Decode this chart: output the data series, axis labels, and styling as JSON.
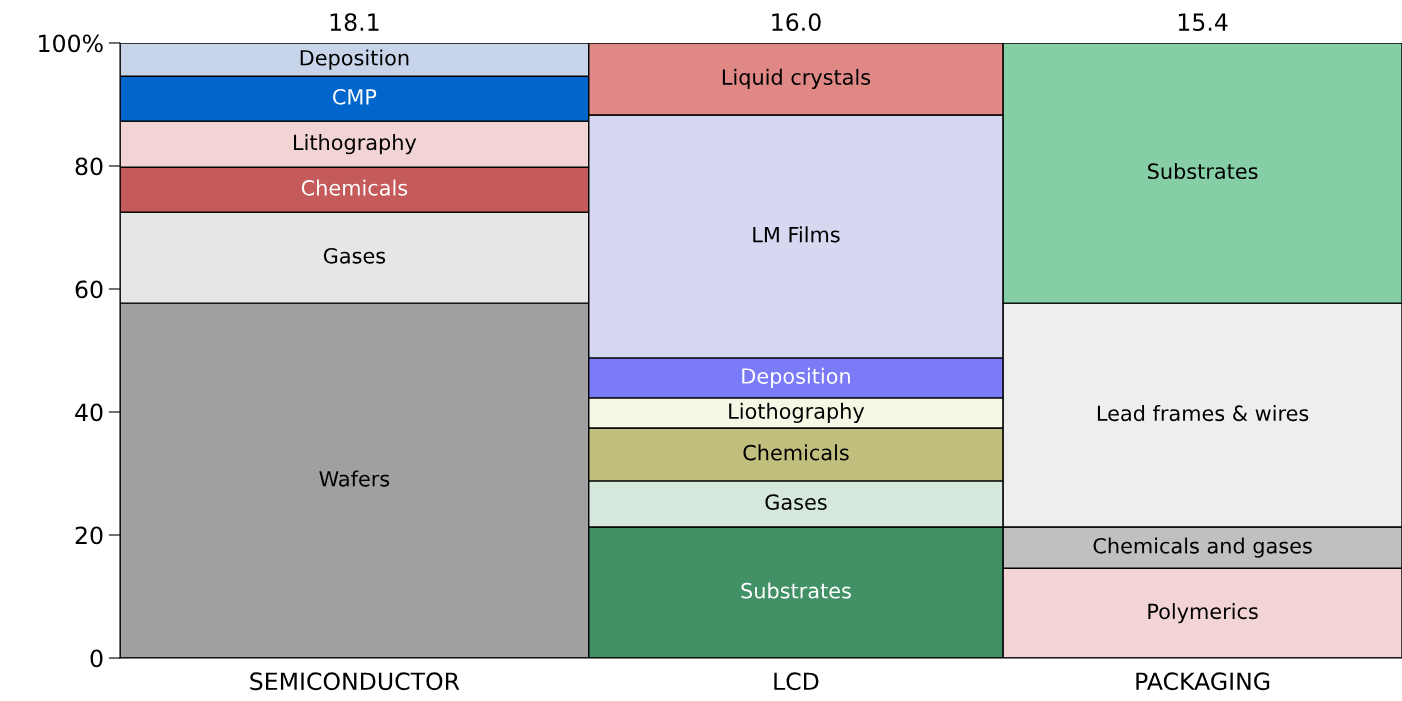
{
  "chart_data": {
    "type": "bar",
    "stacked": true,
    "categories": [
      "SEMICONDUCTOR",
      "LCD",
      "PACKAGING"
    ],
    "annotations": [
      {
        "text": "18.1",
        "x": "SEMICONDUCTOR",
        "y": 100
      },
      {
        "text": "16.0",
        "x": "LCD",
        "y": 100
      },
      {
        "text": "15.4",
        "x": "PACKAGING",
        "y": 100
      }
    ],
    "ylim": [
      0,
      100
    ],
    "yticks": [
      0,
      20,
      40,
      60,
      80,
      {
        "value": 100,
        "label": "100%"
      }
    ],
    "grid": false,
    "legend": false,
    "series": [
      {
        "name": "Wafers",
        "color": "#a0a0a0",
        "values": [
          57.7,
          null,
          null
        ]
      },
      {
        "name": "Gases",
        "color": "#e6e6e6",
        "values": [
          14.8,
          null,
          null
        ]
      },
      {
        "name": "Chemicals",
        "color": "#c55a5a",
        "values": [
          7.3,
          null,
          null
        ]
      },
      {
        "name": "Lithography",
        "color": "#f2d4d4",
        "values": [
          7.5,
          null,
          null
        ]
      },
      {
        "name": "CMP",
        "color": "#0066cc",
        "values": [
          7.3,
          null,
          null
        ]
      },
      {
        "name": "Deposition",
        "color": "#c8d4ea",
        "values": [
          5.4,
          null,
          null
        ]
      },
      {
        "name": "Substrates",
        "color": "#429066",
        "values": [
          null,
          21.3,
          null
        ]
      },
      {
        "name": "Gases",
        "color": "#d6e8dc",
        "values": [
          null,
          7.5,
          null
        ]
      },
      {
        "name": "Chemicals",
        "color": "#c0bf7e",
        "values": [
          null,
          8.6,
          null
        ]
      },
      {
        "name": "Liothography",
        "color": "#f7f7e6",
        "values": [
          null,
          4.9,
          null
        ]
      },
      {
        "name": "Deposition",
        "color": "#7b7bf7",
        "values": [
          null,
          6.5,
          null
        ]
      },
      {
        "name": "LM Films",
        "color": "#d6d8f2",
        "values": [
          null,
          39.5,
          null
        ]
      },
      {
        "name": "Liquid crystals",
        "color": "#df8885",
        "values": [
          null,
          11.7,
          null
        ]
      },
      {
        "name": "Polymerics",
        "color": "#f2d4d4",
        "values": [
          null,
          null,
          14.6
        ]
      },
      {
        "name": "Chemicals and gases",
        "color": "#c0c0c0",
        "values": [
          null,
          null,
          6.7
        ]
      },
      {
        "name": "Lead frames & wires",
        "color": "#eeeeee",
        "values": [
          null,
          null,
          36.4
        ]
      },
      {
        "name": "Substrates",
        "color": "#86cea5",
        "values": [
          null,
          null,
          42.3
        ]
      }
    ]
  }
}
